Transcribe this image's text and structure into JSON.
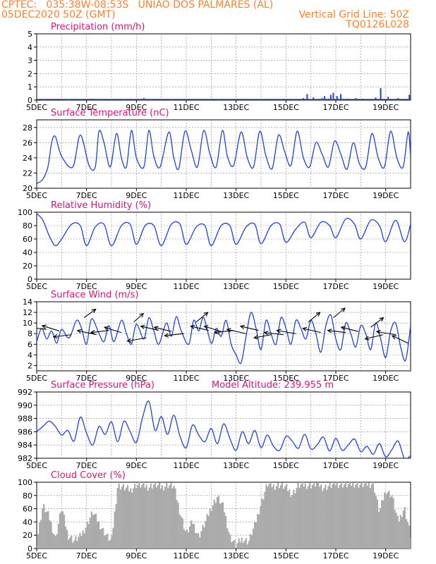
{
  "header": {
    "line1_left": "CPTEC:   035:38W-08:53S   UNIAO DOS PALMARES (AL)",
    "line2_left": "05DEC2020 50Z (GMT)",
    "line2_right": "Vertical Grid Line: 50Z",
    "line3_right": "TQ0126L028"
  },
  "colors": {
    "header_text": "#ff7f2a",
    "panel_title": "#e0107a",
    "series_line": "#2040e0",
    "cloud_fill": "#aaaaaa",
    "wind_arrow": "#000000"
  },
  "chart_data": [
    {
      "type": "bar",
      "title": "Precipitation (mm/h)",
      "ylim": [
        0,
        5
      ],
      "yticks": [
        "0",
        "1",
        "2",
        "3",
        "4",
        "5"
      ],
      "xticks": [
        "5DEC",
        "7DEC",
        "9DEC",
        "11DEC",
        "13DEC",
        "15DEC",
        "17DEC",
        "19DEC"
      ],
      "x_start_day": 5,
      "x_end_day": 20,
      "bars": [
        {
          "day": 5.3,
          "value": 0.05
        },
        {
          "day": 6.3,
          "value": 0.05
        },
        {
          "day": 7.2,
          "value": 0.1
        },
        {
          "day": 8.5,
          "value": 0.05
        },
        {
          "day": 9.3,
          "value": 0.15
        },
        {
          "day": 10.4,
          "value": 0.05
        },
        {
          "day": 12.3,
          "value": 0.05
        },
        {
          "day": 14.0,
          "value": 0.05
        },
        {
          "day": 14.9,
          "value": 0.1
        },
        {
          "day": 15.3,
          "value": 0.05
        },
        {
          "day": 15.7,
          "value": 0.15
        },
        {
          "day": 15.85,
          "value": 0.45
        },
        {
          "day": 16.1,
          "value": 0.2
        },
        {
          "day": 16.45,
          "value": 0.15
        },
        {
          "day": 16.55,
          "value": 0.3
        },
        {
          "day": 16.7,
          "value": 0.1
        },
        {
          "day": 16.8,
          "value": 0.4
        },
        {
          "day": 16.9,
          "value": 0.55
        },
        {
          "day": 17.05,
          "value": 0.3
        },
        {
          "day": 17.2,
          "value": 0.45
        },
        {
          "day": 17.5,
          "value": 0.1
        },
        {
          "day": 17.8,
          "value": 0.15
        },
        {
          "day": 18.1,
          "value": 0.1
        },
        {
          "day": 18.6,
          "value": 0.2
        },
        {
          "day": 18.8,
          "value": 0.9
        },
        {
          "day": 19.1,
          "value": 0.25
        },
        {
          "day": 19.5,
          "value": 0.15
        },
        {
          "day": 19.95,
          "value": 0.4
        }
      ]
    },
    {
      "type": "line",
      "title": "Surface Temperature (nC)",
      "ylim": [
        20,
        29
      ],
      "yticks": [
        "20",
        "22",
        "24",
        "26",
        "28"
      ],
      "xticks": [
        "5DEC",
        "7DEC",
        "9DEC",
        "11DEC",
        "13DEC",
        "15DEC",
        "17DEC",
        "19DEC"
      ],
      "x_start_day": 5,
      "x_end_day": 20,
      "x": [
        5.0,
        5.25,
        5.45,
        5.6,
        5.75,
        6.0,
        6.45,
        6.75,
        7.1,
        7.35,
        7.5,
        7.7,
        7.95,
        8.2,
        8.4,
        8.6,
        8.8,
        9.0,
        9.3,
        9.5,
        9.7,
        9.95,
        10.3,
        10.5,
        10.7,
        10.95,
        11.2,
        11.45,
        11.7,
        11.95,
        12.2,
        12.45,
        12.65,
        12.9,
        13.2,
        13.45,
        13.7,
        13.95,
        14.2,
        14.45,
        14.7,
        14.95,
        15.2,
        15.45,
        15.7,
        15.95,
        16.2,
        16.45,
        16.7,
        16.95,
        17.2,
        17.45,
        17.7,
        17.95,
        18.2,
        18.45,
        18.7,
        18.95,
        19.2,
        19.45,
        19.7,
        19.9,
        20.0
      ],
      "y": [
        20.6,
        21.2,
        22.8,
        26.0,
        26.8,
        24.2,
        22.8,
        27.0,
        23.0,
        22.8,
        27.5,
        26.0,
        22.8,
        27.2,
        24.0,
        22.8,
        27.6,
        24.0,
        22.8,
        27.6,
        24.2,
        22.8,
        27.4,
        24.0,
        22.6,
        27.5,
        25.0,
        22.8,
        27.6,
        24.5,
        22.8,
        27.6,
        24.2,
        23.0,
        27.4,
        24.0,
        22.8,
        27.5,
        24.2,
        22.6,
        27.0,
        24.8,
        23.0,
        27.5,
        24.0,
        22.8,
        26.0,
        24.5,
        22.8,
        26.2,
        24.5,
        22.5,
        26.0,
        23.2,
        22.8,
        27.2,
        24.0,
        22.8,
        27.5,
        24.0,
        22.8,
        27.4,
        24.2
      ]
    },
    {
      "type": "line",
      "title": "Relative Humidity (%)",
      "ylim": [
        0,
        100
      ],
      "yticks": [
        "0",
        "20",
        "40",
        "60",
        "80",
        "100"
      ],
      "xticks": [
        "5DEC",
        "7DEC",
        "9DEC",
        "11DEC",
        "13DEC",
        "15DEC",
        "17DEC",
        "19DEC"
      ],
      "x_start_day": 5,
      "x_end_day": 20,
      "x": [
        5.0,
        5.25,
        5.5,
        5.75,
        6.0,
        6.4,
        6.75,
        7.0,
        7.35,
        7.7,
        8.0,
        8.4,
        8.75,
        9.0,
        9.35,
        9.7,
        10.0,
        10.4,
        10.75,
        11.0,
        11.4,
        11.75,
        12.0,
        12.4,
        12.75,
        13.0,
        13.4,
        13.75,
        14.0,
        14.4,
        14.75,
        15.0,
        15.4,
        15.75,
        16.0,
        16.4,
        16.75,
        17.0,
        17.4,
        17.75,
        18.0,
        18.4,
        18.75,
        19.0,
        19.4,
        19.75,
        20.0
      ],
      "y": [
        98,
        88,
        65,
        50,
        60,
        82,
        80,
        50,
        78,
        82,
        50,
        80,
        82,
        52,
        80,
        80,
        50,
        82,
        82,
        52,
        78,
        80,
        50,
        80,
        80,
        52,
        78,
        82,
        53,
        80,
        82,
        55,
        75,
        85,
        62,
        85,
        80,
        62,
        90,
        82,
        60,
        88,
        80,
        56,
        88,
        56,
        82
      ]
    },
    {
      "type": "line",
      "title": "Surface Wind (m/s)",
      "ylim": [
        1,
        14
      ],
      "yticks": [
        "2",
        "4",
        "6",
        "8",
        "10",
        "12",
        "14"
      ],
      "xticks": [
        "5DEC",
        "7DEC",
        "9DEC",
        "11DEC",
        "13DEC",
        "15DEC",
        "17DEC",
        "19DEC"
      ],
      "x_start_day": 5,
      "x_end_day": 20,
      "x": [
        5.0,
        5.2,
        5.4,
        5.6,
        5.8,
        6.0,
        6.3,
        6.6,
        6.8,
        7.0,
        7.2,
        7.5,
        7.7,
        7.9,
        8.1,
        8.4,
        8.6,
        8.8,
        9.0,
        9.3,
        9.5,
        9.7,
        9.9,
        10.2,
        10.4,
        10.6,
        10.8,
        11.1,
        11.3,
        11.5,
        11.7,
        12.0,
        12.2,
        12.4,
        12.6,
        12.8,
        13.0,
        13.2,
        13.4,
        13.6,
        13.8,
        14.0,
        14.2,
        14.4,
        14.6,
        14.8,
        15.0,
        15.2,
        15.4,
        15.6,
        15.8,
        16.0,
        16.2,
        16.4,
        16.6,
        16.8,
        17.0,
        17.2,
        17.4,
        17.6,
        17.8,
        18.0,
        18.2,
        18.4,
        18.6,
        18.8,
        19.0,
        19.2,
        19.4,
        19.6,
        19.8,
        20.0
      ],
      "y": [
        6.5,
        9.0,
        7.0,
        8.5,
        6.2,
        8.8,
        7.2,
        10.5,
        9.0,
        6.0,
        10.8,
        8.0,
        6.5,
        9.5,
        6.5,
        10.5,
        8.0,
        6.0,
        9.8,
        7.0,
        11.0,
        8.5,
        6.0,
        10.0,
        7.5,
        11.2,
        8.5,
        6.0,
        10.5,
        8.5,
        11.0,
        6.2,
        9.0,
        7.5,
        10.5,
        6.0,
        4.0,
        2.5,
        7.5,
        12.0,
        9.0,
        5.0,
        10.5,
        8.0,
        6.0,
        11.0,
        9.0,
        6.0,
        10.5,
        9.0,
        7.0,
        10.5,
        8.0,
        4.5,
        9.5,
        11.5,
        7.0,
        5.0,
        10.0,
        8.0,
        5.5,
        9.5,
        8.0,
        5.0,
        10.0,
        7.0,
        3.5,
        8.5,
        10.0,
        5.5,
        3.0,
        9.5
      ]
    },
    {
      "type": "line",
      "title": "Surface Pressure (hPa)",
      "subtitle": "Model Altitude: 239.955 m",
      "ylim": [
        982,
        992
      ],
      "yticks": [
        "982",
        "984",
        "986",
        "988",
        "990",
        "992"
      ],
      "xticks": [
        "5DEC",
        "7DEC",
        "9DEC",
        "11DEC",
        "13DEC",
        "15DEC",
        "17DEC",
        "19DEC"
      ],
      "x_start_day": 5,
      "x_end_day": 20,
      "x": [
        5.0,
        5.25,
        5.5,
        5.75,
        6.0,
        6.25,
        6.5,
        6.75,
        7.0,
        7.25,
        7.5,
        7.75,
        8.0,
        8.25,
        8.5,
        8.75,
        9.0,
        9.25,
        9.5,
        9.75,
        10.0,
        10.25,
        10.5,
        10.75,
        11.0,
        11.25,
        11.5,
        11.75,
        12.0,
        12.25,
        12.5,
        12.75,
        13.0,
        13.25,
        13.5,
        13.75,
        14.0,
        14.25,
        14.5,
        14.75,
        15.0,
        15.25,
        15.5,
        15.75,
        16.0,
        16.25,
        16.5,
        16.75,
        17.0,
        17.25,
        17.5,
        17.75,
        18.0,
        18.25,
        18.5,
        18.75,
        19.0,
        19.25,
        19.5,
        19.75,
        20.0
      ],
      "y": [
        986.0,
        986.8,
        987.6,
        986.8,
        985.5,
        986.2,
        984.6,
        988.2,
        985.8,
        984.0,
        986.8,
        985.6,
        987.5,
        984.5,
        987.6,
        986.0,
        984.4,
        988.2,
        990.6,
        986.2,
        988.3,
        985.6,
        988.5,
        985.3,
        983.6,
        987.0,
        985.5,
        984.5,
        986.5,
        984.2,
        987.2,
        985.0,
        983.2,
        986.0,
        984.2,
        986.2,
        983.6,
        985.5,
        983.8,
        983.2,
        985.3,
        984.6,
        983.5,
        985.6,
        983.4,
        984.0,
        985.2,
        983.1,
        985.0,
        983.2,
        984.0,
        984.9,
        983.0,
        983.8,
        982.6,
        984.2,
        982.2,
        983.3,
        984.6,
        982.0,
        982.4
      ]
    },
    {
      "type": "bar",
      "title": "Cloud Cover (%)",
      "ylim": [
        0,
        100
      ],
      "yticks": [
        "0",
        "20",
        "40",
        "60",
        "80",
        "100"
      ],
      "xticks": [
        "5DEC",
        "7DEC",
        "9DEC",
        "11DEC",
        "13DEC",
        "15DEC",
        "17DEC",
        "19DEC"
      ],
      "x_start_day": 5,
      "x_end_day": 20,
      "x": [
        5.0,
        5.25,
        5.5,
        5.75,
        6.0,
        6.25,
        6.5,
        6.75,
        7.0,
        7.25,
        7.5,
        7.75,
        8.0,
        8.25,
        8.5,
        8.75,
        9.0,
        9.25,
        9.5,
        9.75,
        10.0,
        10.25,
        10.5,
        10.75,
        11.0,
        11.25,
        11.5,
        11.75,
        12.0,
        12.25,
        12.5,
        12.75,
        13.0,
        13.25,
        13.5,
        13.75,
        14.0,
        14.25,
        14.5,
        14.75,
        15.0,
        15.25,
        15.5,
        15.75,
        16.0,
        16.25,
        16.5,
        16.75,
        17.0,
        17.25,
        17.5,
        17.75,
        18.0,
        18.25,
        18.5,
        18.75,
        19.0,
        19.25,
        19.5,
        19.75,
        20.0
      ],
      "y": [
        10,
        65,
        48,
        15,
        62,
        20,
        12,
        18,
        35,
        55,
        38,
        22,
        10,
        95,
        92,
        88,
        96,
        95,
        93,
        97,
        92,
        96,
        94,
        55,
        22,
        40,
        18,
        38,
        62,
        78,
        62,
        18,
        5,
        15,
        10,
        35,
        68,
        97,
        94,
        96,
        92,
        82,
        95,
        96,
        95,
        98,
        92,
        94,
        98,
        97,
        96,
        98,
        96,
        97,
        98,
        55,
        88,
        80,
        40,
        62,
        20
      ],
      "fill": "#aaaaaa"
    }
  ],
  "wind_vectors": {
    "days": [
      5.4,
      5.9,
      6.4,
      6.9,
      7.4,
      7.9,
      8.4,
      8.9,
      9.4,
      9.9,
      10.4,
      10.9,
      11.4,
      11.9,
      12.4,
      12.9,
      13.4,
      13.9,
      14.4,
      14.9,
      15.4,
      15.9,
      16.4,
      16.9,
      17.4,
      17.9,
      18.4,
      18.9,
      19.4,
      19.9
    ],
    "speeds": [
      8.8,
      8.5,
      7.8,
      11.0,
      7.8,
      8.6,
      8.2,
      10.2,
      7.2,
      8.6,
      8.4,
      8.0,
      10.2,
      8.6,
      8.4,
      8.6,
      8.0,
      8.6,
      7.8,
      7.8,
      8.0,
      10.2,
      8.2,
      11.0,
      8.2,
      8.4,
      9.2,
      7.8,
      7.8,
      6.2
    ],
    "dir_x": [
      -0.9,
      -0.8,
      -0.85,
      0.55,
      -0.9,
      -0.85,
      -0.8,
      0.45,
      -0.9,
      -0.85,
      -0.8,
      -0.9,
      0.55,
      -0.85,
      -0.8,
      -0.9,
      -0.9,
      -0.85,
      -0.8,
      -0.9,
      -0.9,
      0.55,
      -0.85,
      0.55,
      -0.85,
      -0.8,
      0.6,
      -0.85,
      -0.9,
      -0.75
    ],
    "dir_y": [
      0.1,
      0.25,
      -0.1,
      0.4,
      0.2,
      -0.1,
      0.25,
      0.4,
      -0.15,
      0.2,
      0.2,
      -0.1,
      0.45,
      0.2,
      0.25,
      -0.1,
      0.2,
      0.2,
      -0.15,
      0.1,
      0.15,
      0.45,
      0.2,
      0.45,
      0.1,
      0.2,
      0.45,
      -0.2,
      0.15,
      0.35
    ]
  }
}
